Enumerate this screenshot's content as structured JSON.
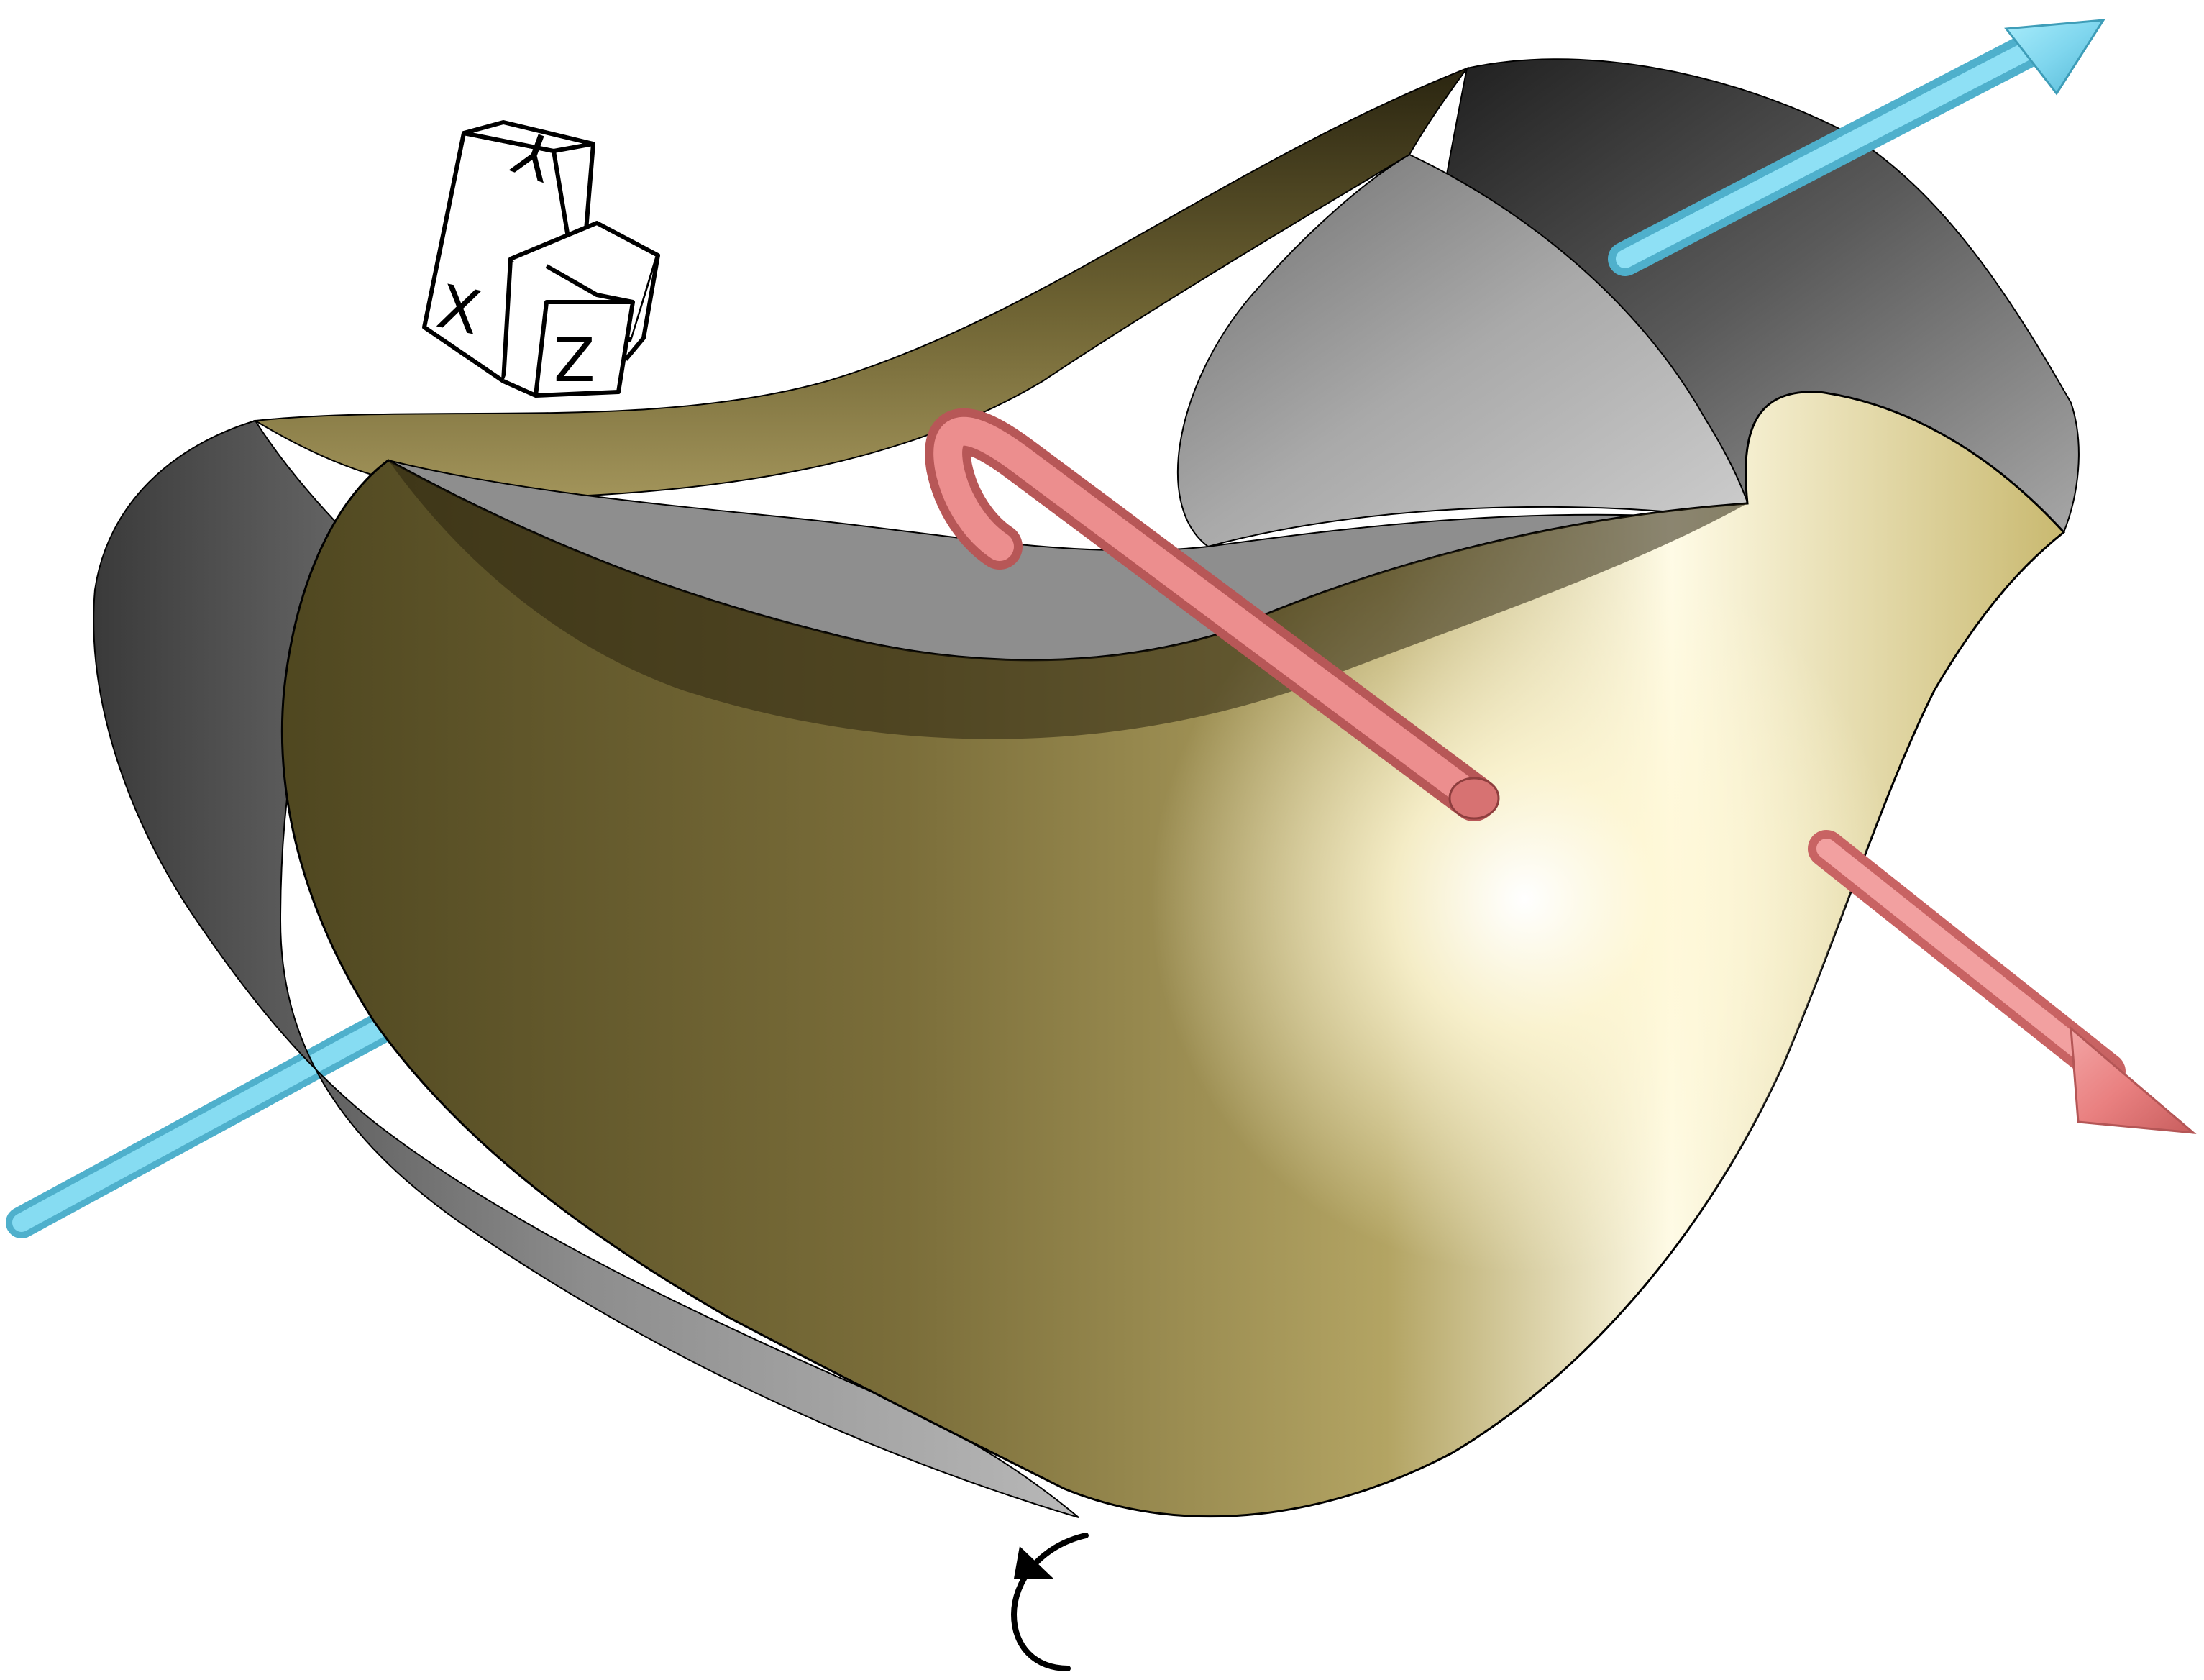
{
  "viewer": {
    "background": "#ffffff",
    "surface_color_light": "#f4eab6",
    "surface_color_mid": "#8f8248",
    "surface_color_dark": "#241f0b",
    "surface_back_color": "#9a9a9a",
    "outline_color": "#000000"
  },
  "axes": {
    "x_color": "#e87c7c",
    "y_color": "#7fd6ee",
    "cube_labels": {
      "x": "X",
      "y": "Y",
      "z": "Z"
    }
  },
  "icons": {
    "orientation": "view-cube-icon",
    "rotate": "rotate-arrow-icon",
    "hook": "rotation-hook-icon"
  }
}
